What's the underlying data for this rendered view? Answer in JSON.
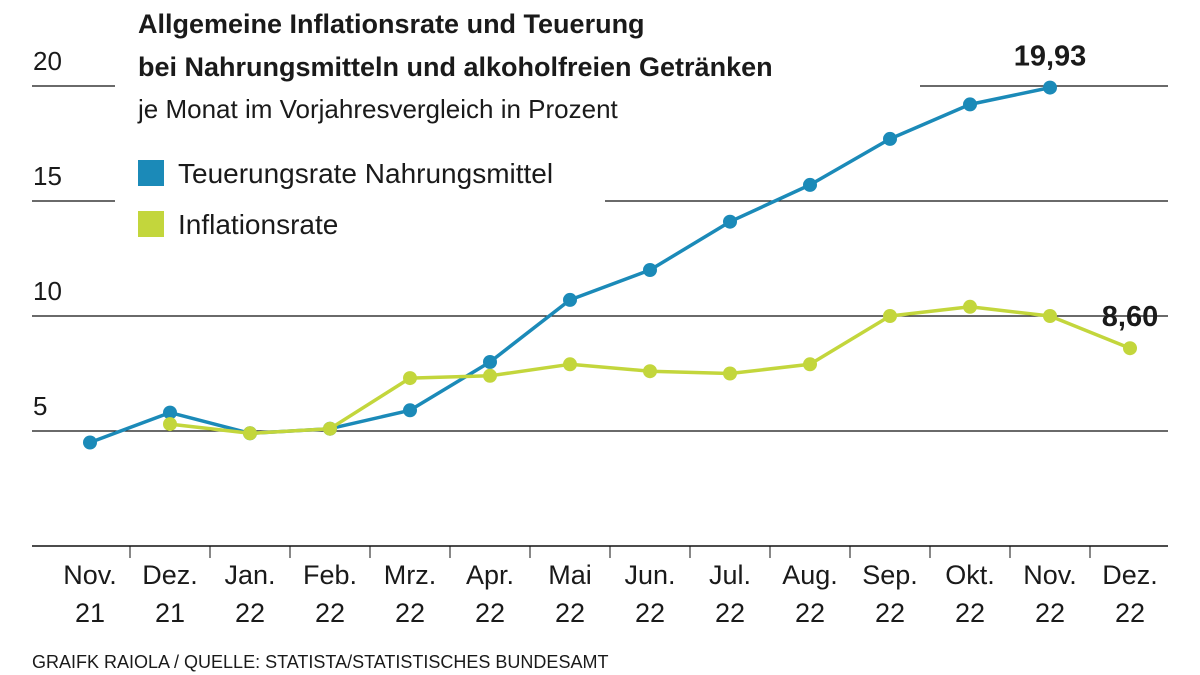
{
  "chart_data": {
    "type": "line",
    "title": [
      "Allgemeine Inflationsrate und Teuerung",
      "bei Nahrungsmitteln und alkoholfreien Getränken"
    ],
    "subtitle": "je Monat im Vorjahresvergleich in Prozent",
    "source": "GRAIFK RAIOLA / QUELLE: STATISTA/STATISTISCHES BUNDESAMT",
    "categories": [
      [
        "Nov.",
        "21"
      ],
      [
        "Dez.",
        "21"
      ],
      [
        "Jan.",
        "22"
      ],
      [
        "Feb.",
        "22"
      ],
      [
        "Mrz.",
        "22"
      ],
      [
        "Apr.",
        "22"
      ],
      [
        "Mai",
        "22"
      ],
      [
        "Jun.",
        "22"
      ],
      [
        "Jul.",
        "22"
      ],
      [
        "Aug.",
        "22"
      ],
      [
        "Sep.",
        "22"
      ],
      [
        "Okt.",
        "22"
      ],
      [
        "Nov.",
        "22"
      ],
      [
        "Dez.",
        "22"
      ]
    ],
    "series": [
      {
        "name": "Teuerungsrate Nahrungsmittel",
        "color": "#1b8ab8",
        "values": [
          4.5,
          5.8,
          4.9,
          5.1,
          5.9,
          8.0,
          10.7,
          12.0,
          14.1,
          15.7,
          17.7,
          19.2,
          19.93,
          null
        ],
        "value_labels": [
          null,
          null,
          null,
          null,
          null,
          null,
          null,
          null,
          null,
          null,
          null,
          null,
          "19,93",
          null
        ]
      },
      {
        "name": "Inflationsrate",
        "color": "#c3d63c",
        "values": [
          null,
          5.3,
          4.9,
          5.1,
          7.3,
          7.4,
          7.9,
          7.6,
          7.5,
          7.9,
          10.0,
          10.4,
          10.0,
          8.6
        ],
        "value_labels": [
          null,
          null,
          null,
          null,
          null,
          null,
          null,
          null,
          null,
          null,
          null,
          null,
          null,
          "8,60"
        ]
      }
    ],
    "ylim": [
      0,
      20
    ],
    "yticks": [
      5,
      10,
      15,
      20
    ],
    "grid": true,
    "legend": "top-left"
  }
}
